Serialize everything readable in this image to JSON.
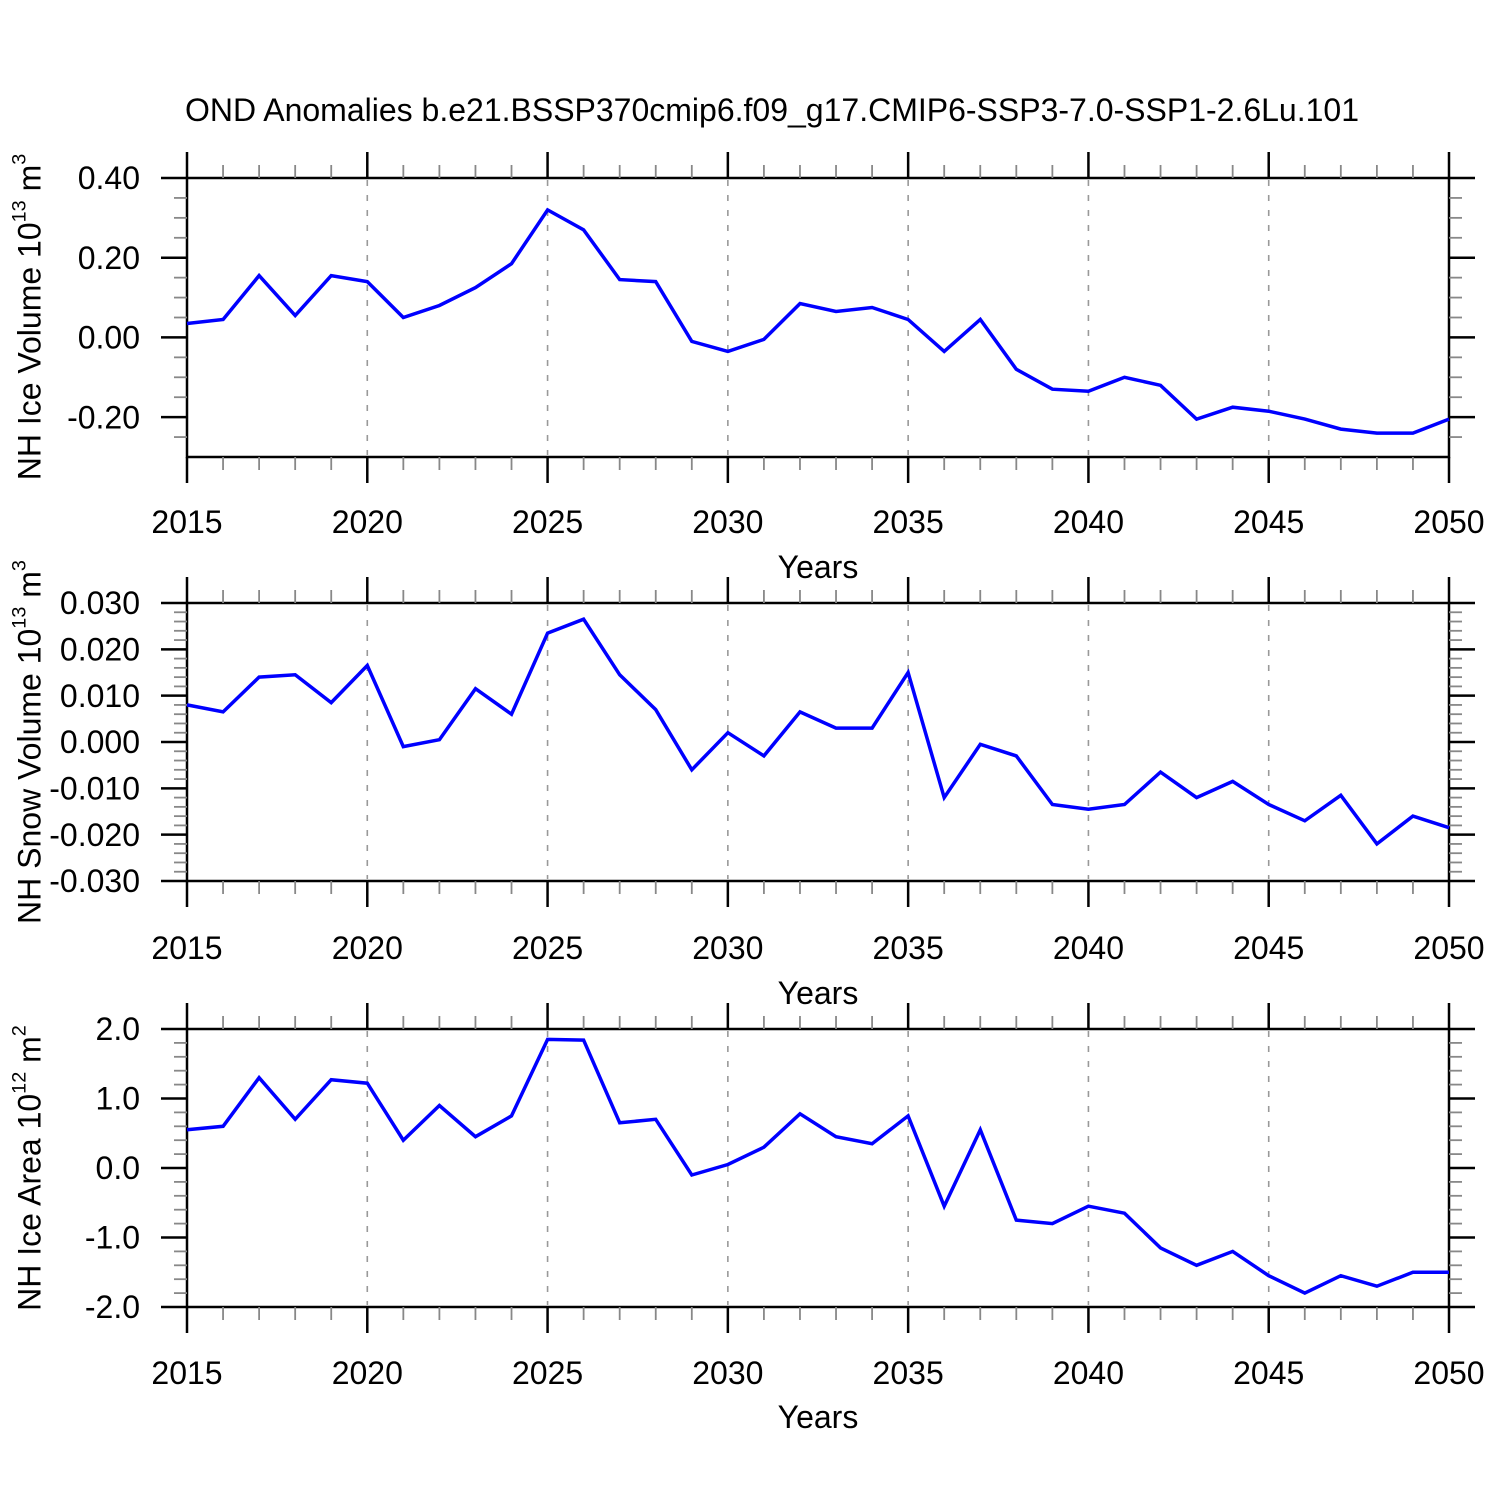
{
  "title": "OND Anomalies b.e21.BSSP370cmip6.f09_g17.CMIP6-SSP3-7.0-SSP1-2.6Lu.101",
  "line_color": "#0000FF",
  "gridline_color": "#999999",
  "x_axis": {
    "label": "Years",
    "tick_labels": [
      "2015",
      "2020",
      "2025",
      "2030",
      "2035",
      "2040",
      "2045",
      "2050"
    ],
    "tick_values": [
      2015,
      2020,
      2025,
      2030,
      2035,
      2040,
      2045,
      2050
    ],
    "range": [
      2015,
      2050
    ],
    "minor_step": 1,
    "gridline_years": [
      2020,
      2025,
      2030,
      2035,
      2040,
      2045
    ]
  },
  "chart_data": {
    "type": "line",
    "x": [
      2015,
      2016,
      2017,
      2018,
      2019,
      2020,
      2021,
      2022,
      2023,
      2024,
      2025,
      2026,
      2027,
      2028,
      2029,
      2030,
      2031,
      2032,
      2033,
      2034,
      2035,
      2036,
      2037,
      2038,
      2039,
      2040,
      2041,
      2042,
      2043,
      2044,
      2045,
      2046,
      2047,
      2048,
      2049,
      2050
    ],
    "panels": [
      {
        "name": "nh-ice-volume",
        "ylabel": {
          "base": "NH Ice Volume 10",
          "exp": "13",
          "unit": " m",
          "unit_exp": "3"
        },
        "ylim": [
          -0.3,
          0.4
        ],
        "ytick_values": [
          0.4,
          0.2,
          0.0,
          -0.2
        ],
        "ytick_labels": [
          "0.40",
          "0.20",
          "0.00",
          "-0.20"
        ],
        "minor_step": 0.05,
        "values": [
          0.035,
          0.045,
          0.155,
          0.055,
          0.155,
          0.14,
          0.05,
          0.08,
          0.125,
          0.185,
          0.32,
          0.27,
          0.145,
          0.14,
          -0.01,
          -0.035,
          -0.005,
          0.085,
          0.065,
          0.075,
          0.045,
          -0.035,
          0.045,
          -0.08,
          -0.13,
          -0.135,
          -0.1,
          -0.12,
          -0.205,
          -0.175,
          -0.185,
          -0.205,
          -0.23,
          -0.24,
          -0.24,
          -0.205
        ]
      },
      {
        "name": "nh-snow-volume",
        "ylabel": {
          "base": "NH Snow Volume 10",
          "exp": "13",
          "unit": " m",
          "unit_exp": "3"
        },
        "ylim": [
          -0.03,
          0.03
        ],
        "ytick_values": [
          0.03,
          0.02,
          0.01,
          0.0,
          -0.01,
          -0.02,
          -0.03
        ],
        "ytick_labels": [
          "0.030",
          "0.020",
          "0.010",
          "0.000",
          "-0.010",
          "-0.020",
          "-0.030"
        ],
        "minor_step": 0.002,
        "values": [
          0.008,
          0.0065,
          0.014,
          0.0145,
          0.0085,
          0.0165,
          -0.001,
          0.0005,
          0.0115,
          0.006,
          0.0235,
          0.0265,
          0.0145,
          0.007,
          -0.006,
          0.002,
          -0.003,
          0.0065,
          0.003,
          0.003,
          0.015,
          -0.012,
          -0.0005,
          -0.003,
          -0.0135,
          -0.0145,
          -0.0135,
          -0.0065,
          -0.012,
          -0.0085,
          -0.0135,
          -0.017,
          -0.0115,
          -0.022,
          -0.016,
          -0.0185
        ]
      },
      {
        "name": "nh-ice-area",
        "ylabel": {
          "base": "NH Ice Area 10",
          "exp": "12",
          "unit": " m",
          "unit_exp": "2"
        },
        "ylim": [
          -2.0,
          2.0
        ],
        "ytick_values": [
          2.0,
          1.0,
          0.0,
          -1.0,
          -2.0
        ],
        "ytick_labels": [
          "2.0",
          "1.0",
          "0.0",
          "-1.0",
          "-2.0"
        ],
        "minor_step": 0.2,
        "values": [
          0.55,
          0.6,
          1.3,
          0.7,
          1.27,
          1.22,
          0.4,
          0.9,
          0.45,
          0.75,
          1.85,
          1.84,
          0.65,
          0.7,
          -0.1,
          0.05,
          0.3,
          0.78,
          0.45,
          0.35,
          0.75,
          -0.55,
          0.55,
          -0.75,
          -0.8,
          -0.55,
          -0.65,
          -1.15,
          -1.4,
          -1.2,
          -1.55,
          -1.8,
          -1.55,
          -1.7,
          -1.5,
          -1.5
        ]
      }
    ]
  }
}
